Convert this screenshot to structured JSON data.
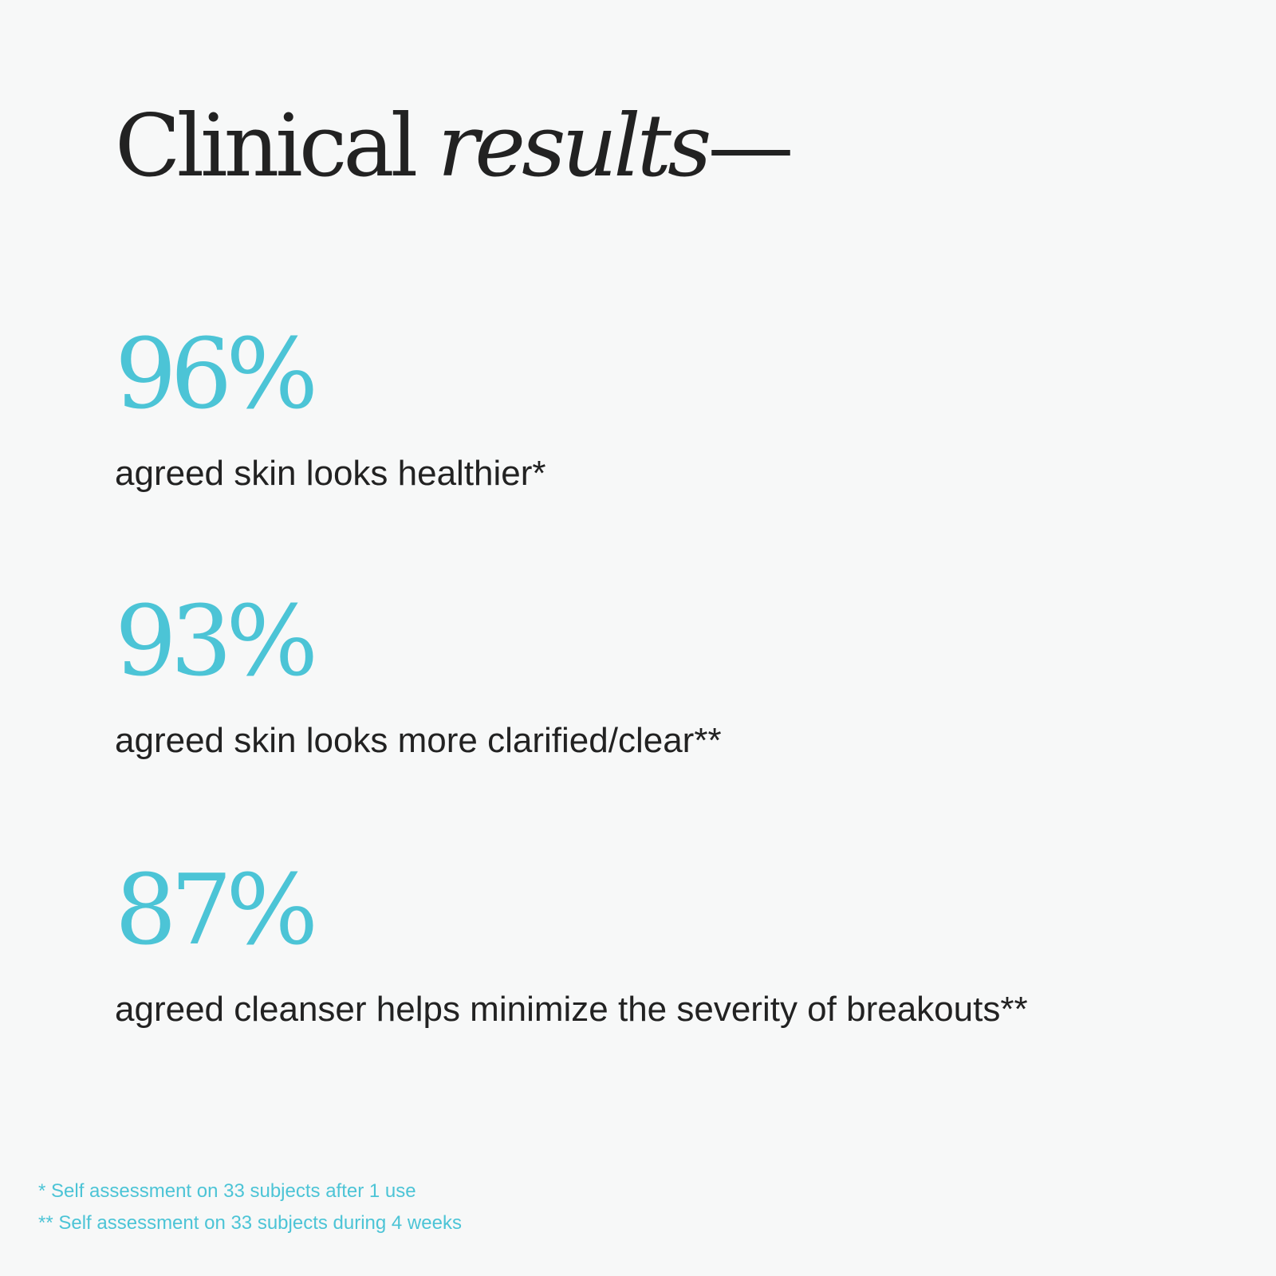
{
  "headline": {
    "word_regular": "Clinical",
    "word_italic": "results",
    "dash": "—"
  },
  "stats": [
    {
      "value": "96%",
      "label": "agreed skin looks healthier*"
    },
    {
      "value": "93%",
      "label": "agreed skin looks more clarified/clear**"
    },
    {
      "value": "87%",
      "label": "agreed cleanser helps minimize the severity of breakouts**"
    }
  ],
  "footnotes": [
    "* Self assessment on 33 subjects after 1 use",
    "** Self assessment on 33 subjects during 4 weeks"
  ],
  "colors": {
    "background": "#f7f8f8",
    "accent": "#4cc4d6",
    "text": "#222222"
  }
}
